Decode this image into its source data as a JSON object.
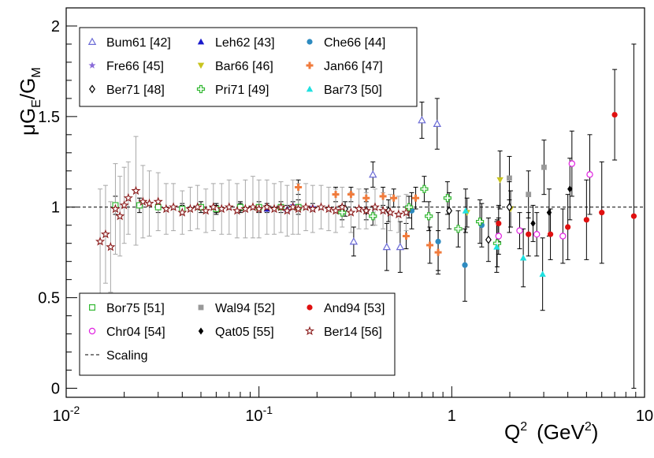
{
  "chart_data": {
    "type": "scatter",
    "xscale": "log",
    "xlim": [
      0.01,
      10
    ],
    "ylim": [
      -0.05,
      2.1
    ],
    "grid": false,
    "x_ticks": [
      {
        "value": 0.01,
        "base": "10",
        "exp": "-2"
      },
      {
        "value": 0.1,
        "base": "10",
        "exp": "-1"
      },
      {
        "value": 1,
        "text": "1"
      },
      {
        "value": 10,
        "text": "10"
      }
    ],
    "y_ticks": [
      {
        "value": 0,
        "text": "0"
      },
      {
        "value": 0.5,
        "text": "0.5"
      },
      {
        "value": 1,
        "text": "1"
      },
      {
        "value": 1.5,
        "text": "1.5"
      },
      {
        "value": 2,
        "text": "2"
      }
    ],
    "xlabel": {
      "main": "Q",
      "sup": "2",
      "unit_open": "(GeV",
      "unit_sup": "2",
      "unit_close": ")"
    },
    "ylabel": {
      "mu": "μ",
      "G1": "G",
      "sub1": "E",
      "slash": "/G",
      "sub2": "M"
    },
    "reference_line": {
      "y": 1,
      "label": "Scaling",
      "style": "dashed"
    },
    "series": [
      {
        "name": "Bum61 [42]",
        "marker": "triangle-open",
        "color": "#6b6bd6",
        "points": [
          [
            0.31,
            0.81,
            0.08
          ],
          [
            0.39,
            1.18,
            0.07
          ],
          [
            0.46,
            0.78,
            0.13
          ],
          [
            0.54,
            0.78,
            0.14
          ],
          [
            0.7,
            1.48,
            0.1
          ],
          [
            0.84,
            1.46,
            0.14
          ]
        ]
      },
      {
        "name": "Leh62 [43]",
        "marker": "triangle-filled",
        "color": "#1a1acc",
        "points": [
          [
            0.04,
            0.99,
            0.02
          ],
          [
            0.06,
            0.99,
            0.02
          ],
          [
            0.08,
            1.0,
            0.02
          ],
          [
            0.11,
            0.99,
            0.02
          ],
          [
            0.14,
            0.99,
            0.02
          ]
        ]
      },
      {
        "name": "Che66 [44]",
        "marker": "circle-filled",
        "color": "#2e8bc0",
        "points": [
          [
            0.62,
            0.98,
            0.1
          ],
          [
            0.85,
            0.81,
            0.16
          ],
          [
            1.17,
            0.68,
            0.2
          ],
          [
            1.43,
            0.9,
            0.12
          ]
        ]
      },
      {
        "name": "Fre66 [45]",
        "marker": "star-filled",
        "color": "#8a6bd9",
        "points": [
          [
            0.11,
            1.0,
            0.02
          ],
          [
            0.15,
            1.01,
            0.02
          ],
          [
            0.19,
            1.0,
            0.02
          ]
        ]
      },
      {
        "name": "Bar66 [46]",
        "marker": "triangle-down-filled",
        "color": "#c8c41f",
        "points": [
          [
            1.2,
            0.97,
            0.08
          ],
          [
            1.78,
            1.15,
            0.16
          ],
          [
            2.02,
            0.99,
            0.1
          ]
        ]
      },
      {
        "name": "Jan66 [47]",
        "marker": "cross-filled",
        "color": "#f07b3c",
        "points": [
          [
            0.16,
            1.11,
            0.04
          ],
          [
            0.25,
            1.07,
            0.04
          ],
          [
            0.3,
            1.07,
            0.04
          ],
          [
            0.36,
            1.05,
            0.05
          ],
          [
            0.44,
            1.06,
            0.05
          ],
          [
            0.5,
            1.05,
            0.05
          ],
          [
            0.58,
            0.84,
            0.07
          ],
          [
            0.65,
            1.05,
            0.06
          ],
          [
            0.77,
            0.79,
            0.1
          ],
          [
            0.85,
            0.75,
            0.12
          ]
        ]
      },
      {
        "name": "Ber71 [48]",
        "marker": "diamond-open",
        "color": "#000000",
        "points": [
          [
            0.28,
            0.99,
            0.04
          ],
          [
            0.36,
            0.98,
            0.05
          ],
          [
            0.47,
            0.98,
            0.06
          ],
          [
            0.97,
            0.98,
            0.1
          ],
          [
            1.55,
            0.82,
            0.12
          ],
          [
            1.99,
            1.0,
            0.14
          ]
        ]
      },
      {
        "name": "Pri71 [49]",
        "marker": "plus-open",
        "color": "#33b833",
        "points": [
          [
            0.27,
            0.97,
            0.04
          ],
          [
            0.39,
            0.95,
            0.05
          ],
          [
            0.6,
            1.0,
            0.06
          ],
          [
            0.72,
            1.1,
            0.07
          ],
          [
            0.76,
            0.95,
            0.08
          ],
          [
            0.95,
            1.05,
            0.09
          ],
          [
            1.08,
            0.88,
            0.1
          ],
          [
            1.4,
            0.92,
            0.12
          ],
          [
            1.72,
            0.8,
            0.13
          ]
        ]
      },
      {
        "name": "Bar73 [50]",
        "marker": "triangle-filled",
        "color": "#1fe0e0",
        "points": [
          [
            1.18,
            0.98,
            0.12
          ],
          [
            1.71,
            0.78,
            0.14
          ],
          [
            2.35,
            0.72,
            0.16
          ],
          [
            2.96,
            0.63,
            0.2
          ]
        ]
      },
      {
        "name": "Bor75 [51]",
        "marker": "square-open",
        "color": "#33b833",
        "points": [
          [
            0.018,
            1.01,
            0.05
          ],
          [
            0.024,
            1.01,
            0.04
          ],
          [
            0.03,
            1.0,
            0.03
          ],
          [
            0.04,
            0.99,
            0.03
          ],
          [
            0.05,
            1.0,
            0.03
          ],
          [
            0.06,
            0.99,
            0.03
          ],
          [
            0.08,
            1.0,
            0.03
          ],
          [
            0.1,
            1.0,
            0.03
          ],
          [
            0.13,
            1.0,
            0.03
          ],
          [
            0.16,
            1.0,
            0.04
          ]
        ]
      },
      {
        "name": "Wal94 [52]",
        "marker": "square-filled",
        "color": "#999999",
        "points": [
          [
            1.99,
            1.16,
            0.12
          ],
          [
            2.5,
            1.07,
            0.13
          ],
          [
            3.01,
            1.22,
            0.15
          ]
        ]
      },
      {
        "name": "And94 [53]",
        "marker": "circle-filled",
        "color": "#e01010",
        "points": [
          [
            1.75,
            0.91,
            0.1
          ],
          [
            2.5,
            0.85,
            0.12
          ],
          [
            3.25,
            0.85,
            0.14
          ],
          [
            4.0,
            0.89,
            0.18
          ],
          [
            5.0,
            0.93,
            0.22
          ],
          [
            6.0,
            0.97,
            0.28
          ],
          [
            7.0,
            1.51,
            0.25
          ],
          [
            8.8,
            0.95,
            0.95
          ]
        ]
      },
      {
        "name": "Chr04 [54]",
        "marker": "circle-open",
        "color": "#e020e0",
        "points": [
          [
            1.75,
            0.84,
            0.1
          ],
          [
            2.25,
            0.87,
            0.1
          ],
          [
            2.76,
            0.85,
            0.12
          ],
          [
            3.77,
            0.84,
            0.15
          ],
          [
            4.2,
            1.24,
            0.18
          ],
          [
            5.2,
            1.18,
            0.22
          ]
        ]
      },
      {
        "name": "Qat05 [55]",
        "marker": "diamond-filled",
        "color": "#000000",
        "points": [
          [
            2.64,
            0.91,
            0.1
          ],
          [
            3.2,
            0.97,
            0.13
          ],
          [
            4.1,
            1.1,
            0.17
          ]
        ]
      },
      {
        "name": "Ber14 [56]",
        "marker": "star-open",
        "color": "#8a1a1a",
        "points": [
          [
            0.015,
            0.81,
            0.29
          ],
          [
            0.016,
            0.85,
            0.27
          ],
          [
            0.017,
            0.78,
            0.25
          ],
          [
            0.018,
            0.99,
            0.25
          ],
          [
            0.019,
            0.95,
            0.22
          ],
          [
            0.02,
            1.01,
            0.21
          ],
          [
            0.021,
            1.05,
            0.2
          ],
          [
            0.023,
            1.09,
            0.3
          ],
          [
            0.025,
            1.03,
            0.2
          ],
          [
            0.027,
            1.02,
            0.18
          ],
          [
            0.03,
            1.03,
            0.16
          ],
          [
            0.033,
            0.99,
            0.14
          ],
          [
            0.036,
            1.0,
            0.13
          ],
          [
            0.04,
            0.97,
            0.12
          ],
          [
            0.044,
            0.99,
            0.12
          ],
          [
            0.048,
            1.0,
            0.12
          ],
          [
            0.053,
            0.98,
            0.12
          ],
          [
            0.058,
            1.0,
            0.13
          ],
          [
            0.064,
            0.99,
            0.14
          ],
          [
            0.07,
            1.0,
            0.15
          ],
          [
            0.077,
            0.98,
            0.15
          ],
          [
            0.085,
            0.99,
            0.16
          ],
          [
            0.093,
            1.0,
            0.17
          ],
          [
            0.1,
            0.99,
            0.16
          ],
          [
            0.11,
            1.0,
            0.15
          ],
          [
            0.12,
            0.99,
            0.14
          ],
          [
            0.13,
            1.0,
            0.14
          ],
          [
            0.14,
            0.98,
            0.14
          ],
          [
            0.15,
            1.0,
            0.15
          ],
          [
            0.16,
            0.99,
            0.14
          ],
          [
            0.175,
            1.0,
            0.13
          ],
          [
            0.19,
            0.99,
            0.13
          ],
          [
            0.21,
            1.0,
            0.12
          ],
          [
            0.23,
            0.99,
            0.12
          ],
          [
            0.25,
            0.98,
            0.12
          ],
          [
            0.27,
            1.0,
            0.11
          ],
          [
            0.3,
            0.97,
            0.11
          ],
          [
            0.33,
            0.99,
            0.11
          ],
          [
            0.36,
            0.98,
            0.1
          ],
          [
            0.4,
            1.0,
            0.1
          ],
          [
            0.44,
            0.98,
            0.1
          ],
          [
            0.48,
            0.97,
            0.1
          ],
          [
            0.53,
            0.96,
            0.1
          ],
          [
            0.58,
            0.97,
            0.1
          ]
        ]
      }
    ],
    "legend": [
      {
        "position": "top-left",
        "columns": 3,
        "entries": [
          0,
          1,
          2,
          3,
          4,
          5,
          6,
          7,
          8
        ]
      },
      {
        "position": "bottom-left",
        "columns": 3,
        "entries": [
          9,
          10,
          11,
          12,
          13,
          14
        ],
        "include_reference_line": true
      }
    ]
  }
}
